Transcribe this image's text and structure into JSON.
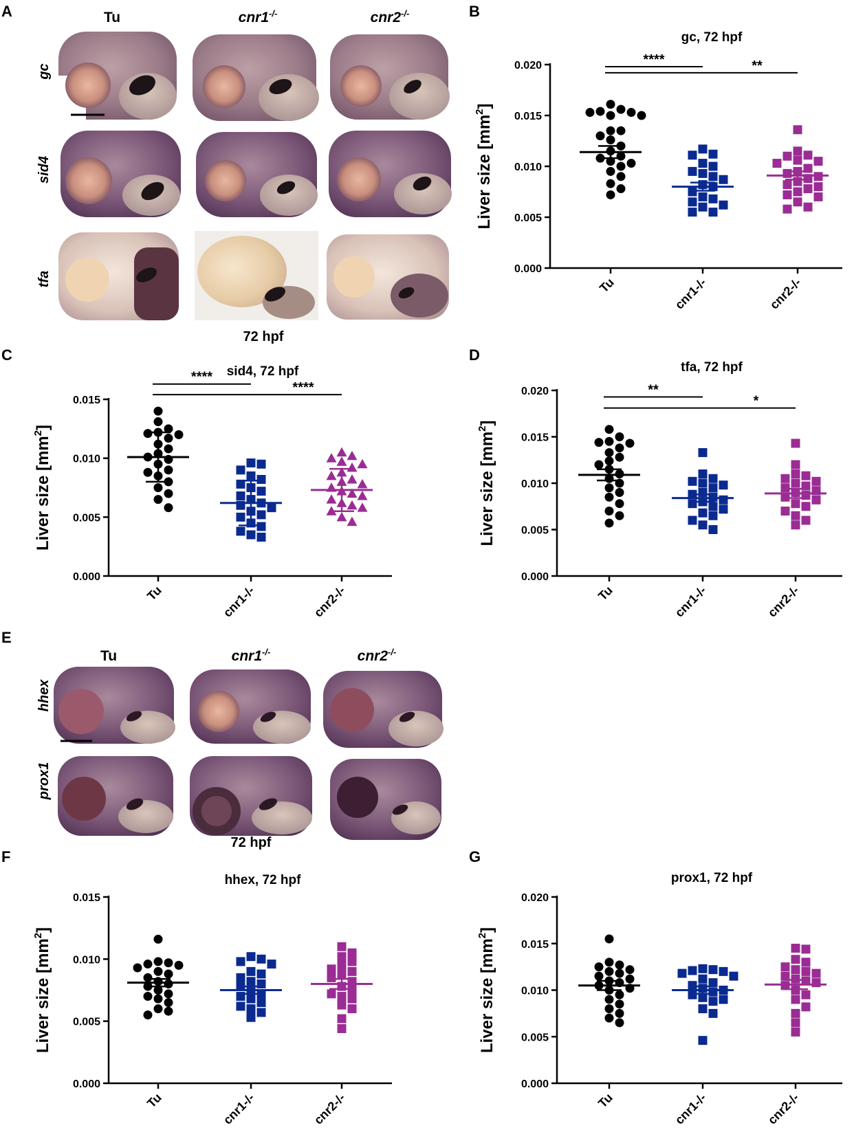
{
  "colors": {
    "tu": "#000000",
    "cnr1": "#0a2a8f",
    "cnr2": "#9a2c94"
  },
  "panel_A": {
    "letter": "A",
    "columns": [
      "Tu",
      "cnr1",
      "cnr2"
    ],
    "superscript": "-/-",
    "rows": [
      "gc",
      "sid4",
      "tfa"
    ],
    "caption": "72 hpf"
  },
  "panel_E": {
    "letter": "E",
    "columns": [
      "Tu",
      "cnr1",
      "cnr2"
    ],
    "superscript": "-/-",
    "rows": [
      "hhex",
      "prox1"
    ],
    "caption": "72 hpf"
  },
  "chart_data": [
    {
      "panel": "B",
      "type": "scatter",
      "title": "gc, 72 hpf",
      "ylabel": "Liver size [mm",
      "ylabel_sup": "2",
      "ylabel_end": "]",
      "ylim": [
        0,
        0.02
      ],
      "yticks": [
        "0.000",
        "0.005",
        "0.010",
        "0.015",
        "0.020"
      ],
      "categories": [
        "Tu",
        "cnr1-/-",
        "cnr2-/-"
      ],
      "series": [
        {
          "marker": "circle",
          "mean": 0.0114,
          "sem": 0.0006,
          "values": [
            0.0161,
            0.0156,
            0.0154,
            0.0153,
            0.0153,
            0.015,
            0.015,
            0.0135,
            0.0135,
            0.013,
            0.0126,
            0.012,
            0.0115,
            0.011,
            0.0108,
            0.0105,
            0.0103,
            0.01,
            0.0095,
            0.009,
            0.0083,
            0.0078,
            0.0072
          ]
        },
        {
          "marker": "square",
          "mean": 0.008,
          "sem": 0.0004,
          "values": [
            0.0117,
            0.0112,
            0.0111,
            0.0103,
            0.01,
            0.0095,
            0.0093,
            0.009,
            0.0087,
            0.0082,
            0.008,
            0.0075,
            0.007,
            0.0068,
            0.0065,
            0.0062,
            0.006,
            0.0055,
            0.0055
          ]
        },
        {
          "marker": "square",
          "mean": 0.0091,
          "sem": 0.0004,
          "values": [
            0.0136,
            0.0115,
            0.0111,
            0.011,
            0.0106,
            0.0105,
            0.0103,
            0.0098,
            0.0095,
            0.0093,
            0.009,
            0.0088,
            0.0085,
            0.0082,
            0.008,
            0.0078,
            0.0075,
            0.0072,
            0.007,
            0.0065,
            0.006,
            0.0058
          ]
        }
      ],
      "brackets": [
        {
          "from": 0,
          "to": 1,
          "label": "****",
          "y": 0.0198
        },
        {
          "from": 0,
          "to": 2,
          "label": "**",
          "y": 0.0192
        }
      ]
    },
    {
      "panel": "C",
      "type": "scatter",
      "title": "sid4, 72 hpf",
      "ylabel": "Liver size [mm",
      "ylabel_sup": "2",
      "ylabel_end": "]",
      "ylim": [
        0,
        0.015
      ],
      "yticks": [
        "0.000",
        "0.005",
        "0.010",
        "0.015"
      ],
      "categories": [
        "Tu",
        "cnr1-/-",
        "cnr2-/-"
      ],
      "series": [
        {
          "marker": "circle",
          "mean": 0.0101,
          "sd": 0.0021,
          "values": [
            0.014,
            0.0131,
            0.0125,
            0.0122,
            0.0121,
            0.012,
            0.0117,
            0.0112,
            0.0108,
            0.0104,
            0.0101,
            0.0099,
            0.0095,
            0.009,
            0.0088,
            0.0085,
            0.008,
            0.0075,
            0.007,
            0.0065,
            0.0058
          ]
        },
        {
          "marker": "square",
          "mean": 0.0062,
          "sd": 0.0019,
          "values": [
            0.0096,
            0.0095,
            0.009,
            0.0085,
            0.0082,
            0.0078,
            0.0075,
            0.0072,
            0.0068,
            0.0065,
            0.0062,
            0.006,
            0.0058,
            0.0055,
            0.0052,
            0.005,
            0.0045,
            0.0042,
            0.0038,
            0.0035,
            0.0033
          ]
        },
        {
          "marker": "triangle",
          "mean": 0.0073,
          "sd": 0.0018,
          "values": [
            0.0105,
            0.0102,
            0.01,
            0.0097,
            0.0095,
            0.0092,
            0.0088,
            0.0085,
            0.0082,
            0.008,
            0.0078,
            0.0075,
            0.0072,
            0.007,
            0.0068,
            0.0065,
            0.0062,
            0.006,
            0.0058,
            0.0055,
            0.005,
            0.0046
          ]
        }
      ],
      "brackets": [
        {
          "from": 0,
          "to": 1,
          "label": "****",
          "y": 0.0163
        },
        {
          "from": 0,
          "to": 2,
          "label": "****",
          "y": 0.0154
        }
      ]
    },
    {
      "panel": "D",
      "type": "scatter",
      "title": "tfa, 72 hpf",
      "ylabel": "Liver size [mm",
      "ylabel_sup": "2",
      "ylabel_end": "]",
      "ylim": [
        0,
        0.02
      ],
      "yticks": [
        "0.000",
        "0.005",
        "0.010",
        "0.015",
        "0.020"
      ],
      "categories": [
        "Tu",
        "cnr1-/-",
        "cnr2-/-"
      ],
      "series": [
        {
          "marker": "circle",
          "mean": 0.0109,
          "sem": 0.0006,
          "values": [
            0.0158,
            0.015,
            0.0145,
            0.0144,
            0.0143,
            0.0138,
            0.0133,
            0.0128,
            0.0124,
            0.012,
            0.0115,
            0.011,
            0.0105,
            0.01,
            0.0095,
            0.009,
            0.0085,
            0.0078,
            0.007,
            0.0065,
            0.0057
          ]
        },
        {
          "marker": "square",
          "mean": 0.0084,
          "sem": 0.0004,
          "values": [
            0.0133,
            0.011,
            0.0105,
            0.0102,
            0.01,
            0.0098,
            0.0095,
            0.009,
            0.0088,
            0.0085,
            0.0082,
            0.008,
            0.0078,
            0.0075,
            0.0072,
            0.0068,
            0.0065,
            0.006,
            0.0055,
            0.005
          ]
        },
        {
          "marker": "square",
          "mean": 0.0089,
          "sem": 0.0005,
          "values": [
            0.0143,
            0.012,
            0.011,
            0.0108,
            0.0105,
            0.0102,
            0.01,
            0.0097,
            0.0095,
            0.0092,
            0.009,
            0.0087,
            0.0085,
            0.0082,
            0.0078,
            0.0075,
            0.007,
            0.0065,
            0.006,
            0.0055
          ]
        }
      ],
      "brackets": [
        {
          "from": 0,
          "to": 1,
          "label": "**",
          "y": 0.0193
        },
        {
          "from": 0,
          "to": 2,
          "label": "*",
          "y": 0.0181
        }
      ]
    },
    {
      "panel": "F",
      "type": "scatter",
      "title": "hhex, 72 hpf",
      "ylabel": "Liver size [mm",
      "ylabel_sup": "2",
      "ylabel_end": "]",
      "ylim": [
        0,
        0.015
      ],
      "yticks": [
        "0.000",
        "0.005",
        "0.010",
        "0.015"
      ],
      "categories": [
        "Tu",
        "cnr1-/-",
        "cnr2-/-"
      ],
      "series": [
        {
          "marker": "circle",
          "mean": 0.0081,
          "sem": 0.0003,
          "values": [
            0.0116,
            0.0098,
            0.0097,
            0.0096,
            0.0095,
            0.0093,
            0.009,
            0.0088,
            0.0085,
            0.0082,
            0.008,
            0.0078,
            0.0075,
            0.0072,
            0.007,
            0.0068,
            0.0065,
            0.006,
            0.0058,
            0.0055
          ]
        },
        {
          "marker": "square",
          "mean": 0.0075,
          "sem": 0.0003,
          "values": [
            0.0102,
            0.01,
            0.0098,
            0.0096,
            0.009,
            0.0088,
            0.0085,
            0.0082,
            0.008,
            0.0078,
            0.0075,
            0.0072,
            0.007,
            0.0068,
            0.0065,
            0.0062,
            0.006,
            0.0057,
            0.0053
          ]
        },
        {
          "marker": "square",
          "mean": 0.008,
          "sem": 0.0004,
          "values": [
            0.011,
            0.0105,
            0.0102,
            0.0098,
            0.0095,
            0.0092,
            0.009,
            0.0088,
            0.0085,
            0.0082,
            0.0078,
            0.0075,
            0.0072,
            0.007,
            0.0068,
            0.0063,
            0.006,
            0.0052,
            0.0044
          ]
        }
      ],
      "brackets": []
    },
    {
      "panel": "G",
      "type": "scatter",
      "title": "prox1, 72 hpf",
      "ylabel": "Liver size [mm",
      "ylabel_sup": "2",
      "ylabel_end": "]",
      "ylim": [
        0,
        0.02
      ],
      "yticks": [
        "0.000",
        "0.005",
        "0.010",
        "0.015",
        "0.020"
      ],
      "categories": [
        "Tu",
        "cnr1-/-",
        "cnr2-/-"
      ],
      "series": [
        {
          "marker": "circle",
          "mean": 0.0105,
          "sem": 0.0005,
          "values": [
            0.0155,
            0.013,
            0.0127,
            0.0125,
            0.0122,
            0.012,
            0.0118,
            0.0115,
            0.0112,
            0.011,
            0.0108,
            0.0105,
            0.0102,
            0.01,
            0.0095,
            0.009,
            0.0085,
            0.008,
            0.0075,
            0.007,
            0.0065
          ]
        },
        {
          "marker": "square",
          "mean": 0.01,
          "sem": 0.0004,
          "values": [
            0.0123,
            0.0122,
            0.0121,
            0.012,
            0.0118,
            0.0115,
            0.0112,
            0.0108,
            0.0105,
            0.0102,
            0.01,
            0.0098,
            0.0095,
            0.0092,
            0.009,
            0.0088,
            0.008,
            0.0075,
            0.0046
          ]
        },
        {
          "marker": "square",
          "mean": 0.0106,
          "sem": 0.0005,
          "values": [
            0.0145,
            0.0144,
            0.0133,
            0.013,
            0.0125,
            0.0122,
            0.012,
            0.0118,
            0.0115,
            0.0112,
            0.011,
            0.0108,
            0.0105,
            0.01,
            0.0095,
            0.009,
            0.0082,
            0.0075,
            0.0065,
            0.0055
          ]
        }
      ],
      "brackets": []
    }
  ]
}
